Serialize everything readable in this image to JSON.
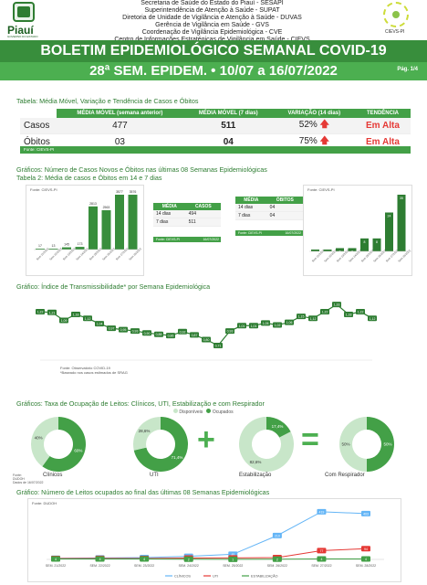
{
  "header": {
    "lines": [
      "Secretaria de Saúde do Estado do Piauí - SESAPI",
      "Superintendência de Atenção à Saúde - SUPAT",
      "Diretoria de Unidade de Vigilância e Atenção à Saúde - DUVAS",
      "Gerência de Vigilância em Saúde - GVS",
      "Coordenação de Vigilância Epidemiológica - CVE",
      "Centro de Informações Estratégicas de Vigilância em Saúde - CIEVS"
    ],
    "brand": "Piauí",
    "brand_sub": "GOVERNO DO ESTADO",
    "cievs_label": "CIEVS-PI",
    "title": "BOLETIM EPIDEMIOLÓGICO SEMANAL COVID-19",
    "subtitle": "28ª SEM. EPIDEM. • 10/07 a 16/07/2022",
    "page": "Pág. 1/4"
  },
  "table1": {
    "title": "Tabela: Média Móvel, Variação e Tendência de Casos e Óbitos",
    "headers": [
      "",
      "MÉDIA MÓVEL (semana anterior)",
      "MÉDIA MÓVEL (7 dias)",
      "VARIAÇÃO (14 dias)",
      "TENDÊNCIA"
    ],
    "rows": [
      {
        "label": "Casos",
        "prev": "477",
        "cur": "511",
        "var": "52%",
        "trend": "Em Alta"
      },
      {
        "label": "Óbitos",
        "prev": "03",
        "cur": "04",
        "var": "75%",
        "trend": "Em Alta"
      }
    ],
    "source": "Fonte: CIEVS-PI"
  },
  "section2": {
    "title": "Gráficos: Número de Casos Novos e Óbitos nas últimas 08 Semanas Epidemiológicas",
    "subtitle": "Tabela 2: Média de casos e Óbitos em 14 e 7 dias",
    "source_label": "Fonte: CIEVS-PI"
  },
  "cases_chart": {
    "source": "Fonte: CIEVS-PI",
    "categories": [
      "Sem 21/2022",
      "Sem 22/2022",
      "Sem 23/2022",
      "Sem 24/2022",
      "Sem 25/2022",
      "Sem 26/2022",
      "Sem 27/2022",
      "Sem 28/2022"
    ],
    "values": [
      17,
      13,
      145,
      173,
      2813,
      2563,
      3577,
      3576
    ],
    "color": "#388e3c"
  },
  "cases_table": {
    "headers": [
      "MÉDIA",
      "CASOS"
    ],
    "rows": [
      [
        "14 dias",
        "494"
      ],
      [
        "7 dias",
        "511"
      ]
    ],
    "footer": "Fonte: CIEVS-PI",
    "footer_date": "16/07/2022"
  },
  "deaths_table": {
    "headers": [
      "MÉDIA",
      "ÓBITOS"
    ],
    "rows": [
      [
        "14 dias",
        "04"
      ],
      [
        "7 dias",
        "04"
      ]
    ],
    "footer": "Fonte: CIEVS-PI",
    "footer_date": "16/07/2022"
  },
  "deaths_chart": {
    "source": "Fonte: CIEVS-PI",
    "values": [
      1,
      1,
      2,
      2,
      8,
      8,
      24,
      35
    ],
    "color": "#2e7d32"
  },
  "rt": {
    "title": "Gráfico: Índice de Transmissibilidade* por Semana Epidemiológica",
    "values": [
      1.22,
      1.21,
      1.09,
      1.18,
      1.12,
      1.04,
      0.97,
      0.95,
      0.93,
      0.9,
      0.88,
      0.86,
      0.92,
      0.87,
      0.8,
      0.71,
      0.93,
      1.01,
      1.01,
      1.05,
      1.02,
      1.06,
      1.15,
      1.12,
      1.22,
      1.33,
      1.18,
      1.22,
      1.12
    ],
    "labels": [
      "1,22",
      "1,21",
      "1,09",
      "1,18",
      "1,12",
      "1,04",
      "0,97",
      "0,95",
      "0,93",
      "0,90",
      "0,88",
      "0,86",
      "0,92",
      "0,87",
      "0,80",
      "0,71",
      "0,93",
      "1,01",
      "1,01",
      "1,05",
      "1,02",
      "1,06",
      "1,15",
      "1,12",
      "1,22",
      "1,33",
      "1,18",
      "1,22",
      "1,12"
    ],
    "source": "Fonte: Observatório COVID-19",
    "note": "*Baseado nos casos estimados de SRAG"
  },
  "beds": {
    "title": "Gráficos: Taxa de Ocupação de Leitos: Clínicos, UTI, Estabilização e com Respirador",
    "legend": [
      "Disponíveis",
      "Ocupados"
    ],
    "colors": {
      "available": "#c8e6c9",
      "occupied": "#43a047"
    },
    "items": [
      {
        "name": "Clínicos",
        "available": "40%",
        "occupied": "60%",
        "occ": 60
      },
      {
        "name": "UTI",
        "available": "28,6%",
        "occupied": "71,4%",
        "occ": 71.4
      },
      {
        "name": "Estabilização",
        "available": "82,6%",
        "occupied": "17,4%",
        "occ": 17.4
      },
      {
        "name": "Com Respirador",
        "available": "50%",
        "occupied": "50%",
        "occ": 50
      }
    ],
    "plus": "+",
    "equals": "=",
    "source_lines": [
      "Fonte:",
      "DUDOH",
      "Dados de 16/07/2022"
    ]
  },
  "occupied_chart": {
    "title": "Gráfico: Número de Leitos ocupados ao final das últimas 08 Semanas Epidemiológicas",
    "source": "Fonte: DUDOH",
    "categories": [
      "SEM. 21/2022",
      "SEM. 22/2022",
      "SEM. 23/2022",
      "SEM. 24/2022",
      "SEM. 25/2022",
      "SEM. 26/2022",
      "SEM. 27/2022",
      "SEM. 28/2022"
    ],
    "series": [
      {
        "name": "CLÍNICOS",
        "color": "#64b5f6",
        "values": [
          10,
          13,
          16,
          27,
          45,
          210,
          419,
          403
        ],
        "labels": [
          "10",
          "13",
          "16",
          "27",
          "45",
          "210",
          "419",
          "403"
        ]
      },
      {
        "name": "UTI",
        "color": "#e53935",
        "values": [
          8,
          9,
          8,
          12,
          13,
          16,
          77,
          94
        ],
        "labels": [
          "8",
          "9",
          "8",
          "12",
          "13",
          "16",
          "77",
          "94"
        ]
      },
      {
        "name": "ESTABILIZAÇÃO",
        "color": "#43a047",
        "values": [
          4,
          4,
          4,
          2,
          1,
          2,
          4,
          4
        ],
        "labels": [
          "4",
          "4",
          "4",
          "2",
          "1",
          "2",
          "4",
          "4"
        ]
      }
    ]
  }
}
